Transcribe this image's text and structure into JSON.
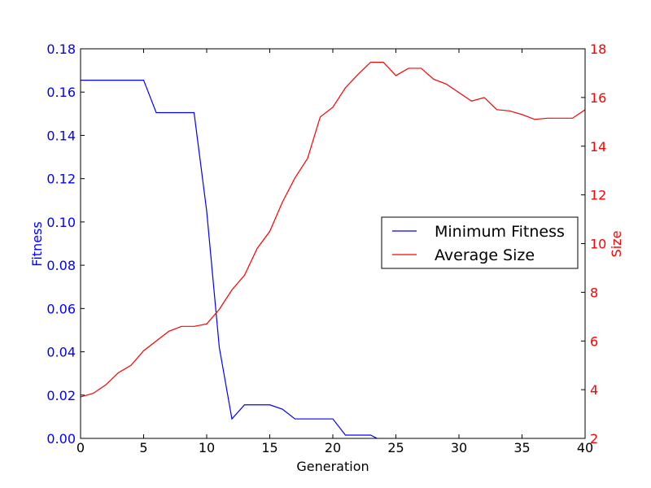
{
  "chart_data": {
    "type": "line",
    "xlabel": "Generation",
    "ylabel_left": "Fitness",
    "ylabel_right": "Size",
    "xlim": [
      0,
      40
    ],
    "ylim_left": [
      0,
      0.18
    ],
    "ylim_right": [
      2,
      18
    ],
    "x_ticks": [
      "0",
      "5",
      "10",
      "15",
      "20",
      "25",
      "30",
      "35",
      "40"
    ],
    "y_left_ticks": [
      "0.00",
      "0.02",
      "0.04",
      "0.06",
      "0.08",
      "0.10",
      "0.12",
      "0.14",
      "0.16",
      "0.18"
    ],
    "y_right_ticks": [
      "2",
      "4",
      "6",
      "8",
      "10",
      "12",
      "14",
      "16",
      "18"
    ],
    "grid": false,
    "legend_position": "center-right",
    "left_axis_color": "#0000ff",
    "right_axis_color": "#ff0000",
    "series": [
      {
        "name": "Minimum Fitness",
        "axis": "left",
        "color": "#0000ff",
        "x": [
          0,
          1,
          2,
          3,
          4,
          5,
          6,
          7,
          8,
          9,
          10,
          11,
          12,
          13,
          14,
          15,
          16,
          17,
          18,
          19,
          20,
          21,
          22,
          23,
          24,
          25,
          26,
          27,
          28,
          29,
          30,
          31,
          32,
          33,
          34,
          35,
          36,
          37,
          38,
          39,
          40
        ],
        "values": [
          0.1655,
          0.1655,
          0.1655,
          0.1655,
          0.1655,
          0.1655,
          0.1505,
          0.1505,
          0.1505,
          0.1505,
          0.105,
          0.042,
          0.009,
          0.0155,
          0.0155,
          0.0155,
          0.0135,
          0.009,
          0.009,
          0.009,
          0.009,
          0.0015,
          0.0015,
          0.0015,
          -0.0015,
          -0.0015,
          -0.0015,
          -0.0015,
          -0.0015,
          -0.0015,
          -0.0015,
          -0.0015,
          -0.0015,
          -0.0015,
          -0.0015,
          -0.0015,
          -0.0015,
          -0.0015,
          -0.0015,
          -0.0015,
          -0.0015
        ]
      },
      {
        "name": "Average Size",
        "axis": "right",
        "color": "#ff0000",
        "x": [
          0,
          1,
          2,
          3,
          4,
          5,
          6,
          7,
          8,
          9,
          10,
          11,
          12,
          13,
          14,
          15,
          16,
          17,
          18,
          19,
          20,
          21,
          22,
          23,
          24,
          25,
          26,
          27,
          28,
          29,
          30,
          31,
          32,
          33,
          34,
          35,
          36,
          37,
          38,
          39,
          40
        ],
        "values": [
          3.7,
          3.85,
          4.2,
          4.7,
          5.0,
          5.6,
          6.0,
          6.4,
          6.6,
          6.6,
          6.7,
          7.3,
          8.1,
          8.7,
          9.8,
          10.5,
          11.7,
          12.7,
          13.5,
          15.2,
          15.6,
          16.4,
          16.95,
          17.45,
          17.45,
          16.9,
          17.2,
          17.2,
          16.75,
          16.55,
          16.2,
          15.85,
          16.0,
          15.5,
          15.45,
          15.3,
          15.1,
          15.15,
          15.15,
          15.15,
          15.5
        ]
      }
    ]
  }
}
